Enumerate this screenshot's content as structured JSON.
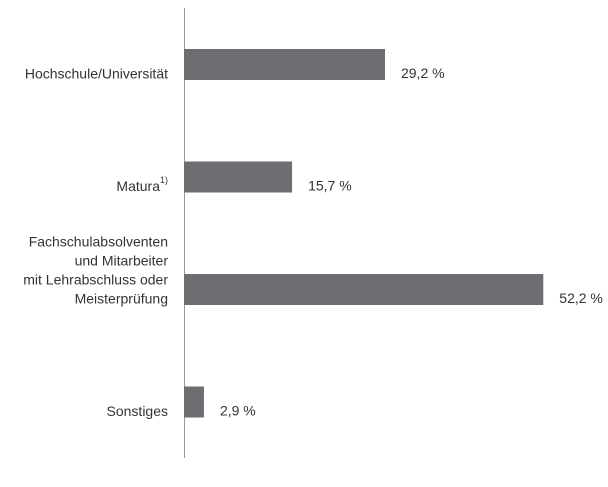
{
  "chart_data": {
    "type": "barh",
    "categories": [
      [
        "Hochschule/Universität"
      ],
      [
        "Matura"
      ],
      [
        "Fachschulabsolventen",
        "und Mitarbeiter",
        "mit Lehrabschluss oder",
        "Meisterprüfung"
      ],
      [
        "Sonstiges"
      ]
    ],
    "category_superscripts": [
      null,
      "1)",
      null,
      null
    ],
    "values": [
      29.2,
      15.7,
      52.2,
      2.9
    ],
    "value_labels": [
      "29,2 %",
      "15,7 %",
      "52,2 %",
      "2,9 %"
    ],
    "color": "#6d6e71",
    "xlim": [
      0,
      60
    ]
  }
}
